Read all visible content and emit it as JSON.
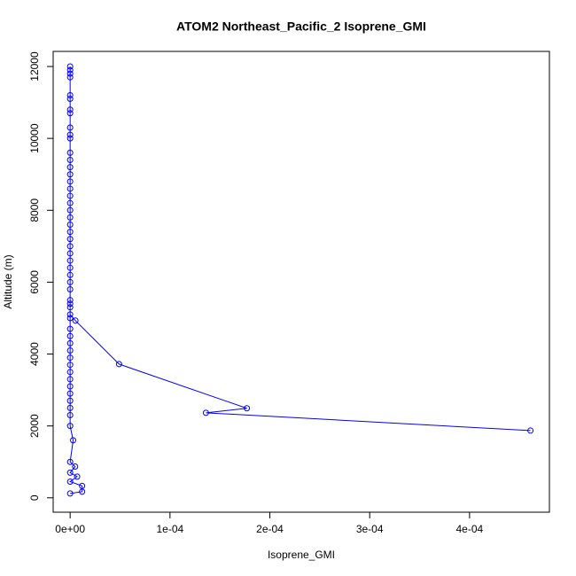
{
  "chart_data": {
    "type": "line",
    "title": "ATOM2 Northeast_Pacific_2 Isoprene_GMI",
    "x_label": "Isoprene_GMI",
    "y_label": "Altitude (m)",
    "color": "#0000ff",
    "markers": true,
    "x": [
      0,
      1.2e-05,
      1.2e-05,
      0,
      7e-06,
      0,
      5e-06,
      0,
      3e-06,
      0,
      0,
      0,
      0,
      0,
      0,
      0,
      0,
      0,
      0,
      0,
      0,
      0,
      0,
      0,
      0,
      0,
      0,
      0,
      0,
      0,
      0,
      0,
      0,
      0,
      0,
      0,
      0,
      0,
      0,
      0,
      0,
      0,
      0,
      0,
      0,
      0,
      0,
      0,
      0,
      0,
      0,
      0,
      0,
      0,
      0,
      0,
      0,
      0,
      0,
      5.3e-06,
      4.9e-05,
      0.000177,
      0.000136,
      0.000461
    ],
    "values": [
      120,
      170,
      330,
      450,
      590,
      700,
      870,
      1000,
      1600,
      2000,
      2300,
      2500,
      2700,
      2900,
      3100,
      3300,
      3500,
      3700,
      3900,
      4100,
      4300,
      4500,
      4700,
      5000,
      5300,
      5500,
      6000,
      6400,
      6800,
      7200,
      7600,
      8000,
      8400,
      8800,
      9200,
      9600,
      10000,
      10300,
      10700,
      11100,
      11700,
      11800,
      12000,
      11900,
      11200,
      10800,
      10100,
      9400,
      9000,
      8600,
      8200,
      7800,
      7400,
      7000,
      6600,
      6200,
      5800,
      5400,
      5100,
      4930,
      3720,
      2490,
      2365,
      1870
    ],
    "xlim": [
      -1.7e-05,
      0.00048
    ],
    "ylim": [
      -400,
      12420
    ],
    "xticks": [
      {
        "value": 0,
        "label": "0e+00"
      },
      {
        "value": 0.0001,
        "label": "1e-04"
      },
      {
        "value": 0.0002,
        "label": "2e-04"
      },
      {
        "value": 0.0003,
        "label": "3e-04"
      },
      {
        "value": 0.0004,
        "label": "4e-04"
      }
    ],
    "yticks": [
      0,
      2000,
      4000,
      6000,
      8000,
      10000,
      12000
    ]
  }
}
